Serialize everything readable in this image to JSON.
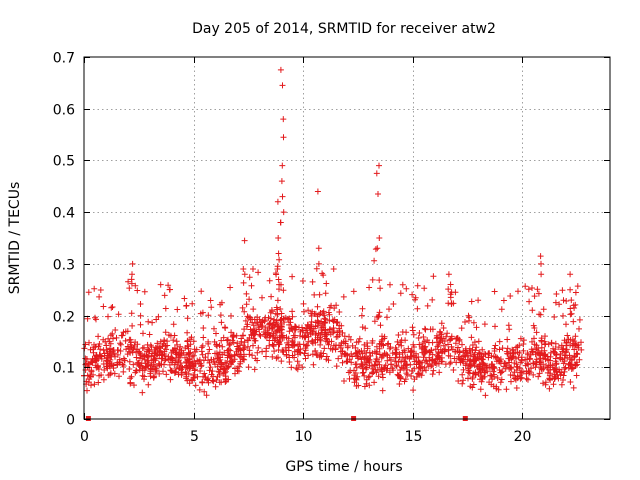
{
  "chart_data": {
    "type": "scatter",
    "title": "Day 205 of 2014, SRMTID for receiver atw2",
    "xlabel": "GPS time / hours",
    "ylabel": "SRMTID / TECUs",
    "xlim": [
      0,
      24
    ],
    "ylim": [
      0,
      0.7
    ],
    "xticks": [
      0,
      5,
      10,
      15,
      20
    ],
    "yticks": [
      0,
      0.1,
      0.2,
      0.3,
      0.4,
      0.5,
      0.6,
      0.7
    ],
    "grid": true,
    "marker": "plus",
    "marker_color": "#e31a1c",
    "gap_marker_color": "#e31a1c",
    "gap_markers_x": [
      0.2,
      12.3,
      17.4
    ],
    "series": [
      {
        "name": "SRMTID",
        "envelope_note": "approximate envelope of the dense cloud of points",
        "x_range": [
          0,
          22.7
        ],
        "baseline": [
          [
            0.0,
            0.1
          ],
          [
            1.0,
            0.12
          ],
          [
            2.0,
            0.13
          ],
          [
            2.8,
            0.1
          ],
          [
            3.5,
            0.13
          ],
          [
            4.5,
            0.12
          ],
          [
            5.5,
            0.1
          ],
          [
            6.5,
            0.11
          ],
          [
            7.5,
            0.16
          ],
          [
            8.5,
            0.18
          ],
          [
            9.5,
            0.15
          ],
          [
            10.5,
            0.17
          ],
          [
            11.5,
            0.16
          ],
          [
            12.5,
            0.1
          ],
          [
            13.5,
            0.12
          ],
          [
            14.5,
            0.11
          ],
          [
            15.5,
            0.13
          ],
          [
            16.5,
            0.14
          ],
          [
            17.5,
            0.11
          ],
          [
            18.5,
            0.1
          ],
          [
            19.5,
            0.11
          ],
          [
            20.5,
            0.12
          ],
          [
            21.5,
            0.11
          ],
          [
            22.7,
            0.12
          ]
        ],
        "spikes": [
          {
            "x": 9.05,
            "values": [
              0.675,
              0.645,
              0.58,
              0.545,
              0.49,
              0.46,
              0.43,
              0.4,
              0.38
            ]
          },
          {
            "x": 8.9,
            "values": [
              0.42,
              0.38,
              0.35,
              0.32
            ]
          },
          {
            "x": 10.7,
            "values": [
              0.44,
              0.33,
              0.3
            ]
          },
          {
            "x": 13.4,
            "values": [
              0.49,
              0.475,
              0.435,
              0.35,
              0.33
            ]
          },
          {
            "x": 2.2,
            "values": [
              0.3,
              0.28,
              0.27
            ]
          },
          {
            "x": 7.4,
            "values": [
              0.345,
              0.28
            ]
          },
          {
            "x": 16.7,
            "values": [
              0.28,
              0.26
            ]
          },
          {
            "x": 20.8,
            "values": [
              0.315,
              0.3,
              0.28
            ]
          },
          {
            "x": 22.2,
            "values": [
              0.28,
              0.25,
              0.23
            ]
          }
        ]
      }
    ]
  }
}
